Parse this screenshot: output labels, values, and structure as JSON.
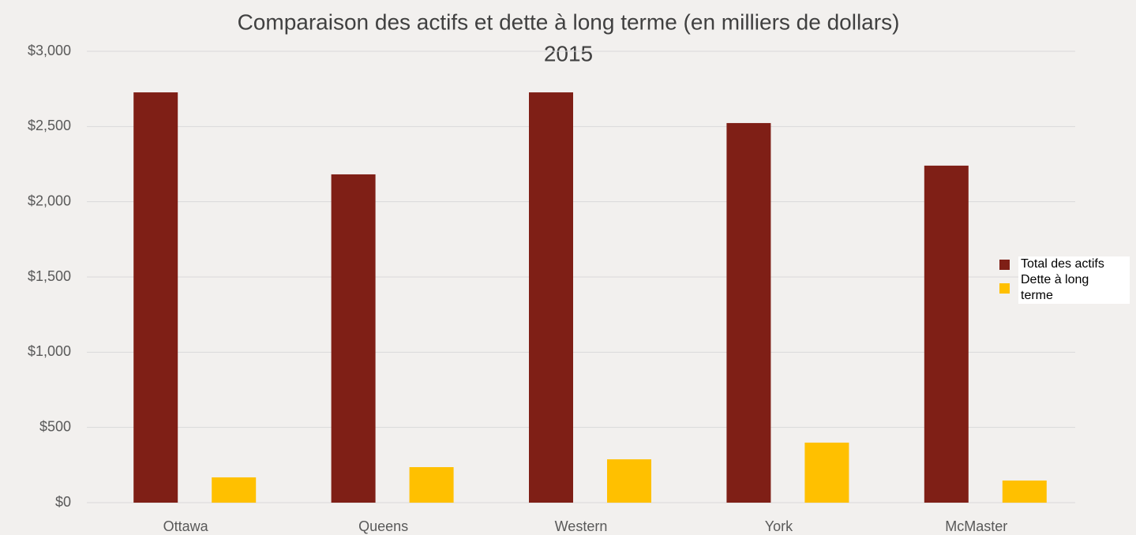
{
  "chart_data": {
    "type": "bar",
    "title": "Comparaison des actifs et dette à long terme (en milliers de dollars)",
    "subtitle": "2015",
    "categories": [
      "Ottawa",
      "Queens",
      "Western",
      "York",
      "McMaster"
    ],
    "series": [
      {
        "name": "Total des actifs",
        "color": "#7f1f16",
        "values": [
          2727,
          2182,
          2727,
          2523,
          2240
        ]
      },
      {
        "name": "Dette à long terme",
        "color": "#ffc000",
        "values": [
          168,
          236,
          288,
          399,
          147
        ]
      }
    ],
    "ylim": [
      0,
      3000
    ],
    "yticks": [
      {
        "value": 0,
        "label": "$0"
      },
      {
        "value": 500,
        "label": "$500"
      },
      {
        "value": 1000,
        "label": "$1,000"
      },
      {
        "value": 1500,
        "label": "$1,500"
      },
      {
        "value": 2000,
        "label": "$2,000"
      },
      {
        "value": 2500,
        "label": "$2,500"
      },
      {
        "value": 3000,
        "label": "$3,000"
      }
    ],
    "grid": true,
    "legend": "right"
  }
}
